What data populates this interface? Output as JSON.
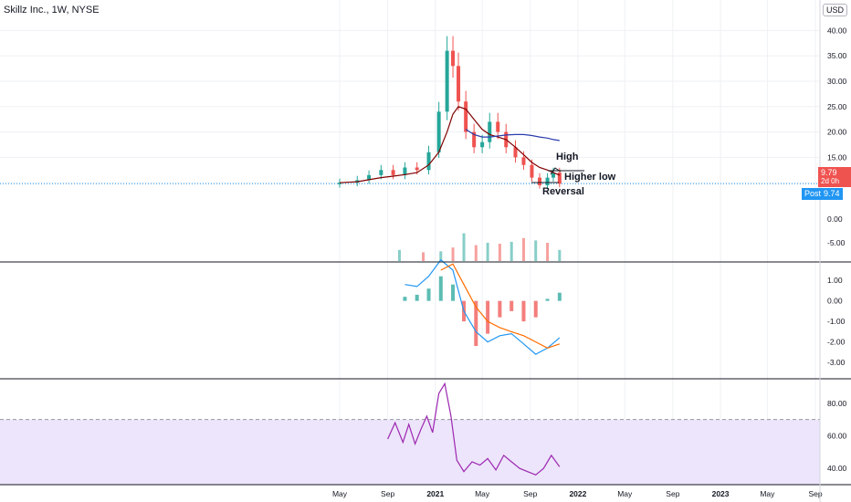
{
  "header": {
    "title": "Skillz Inc., 1W, NYSE",
    "currency": "USD"
  },
  "price_tags": {
    "last_price": "9.79",
    "countdown": "2d 0h",
    "post_label": "Post",
    "post_price": "9.74"
  },
  "annotations": [
    "High",
    "Higher low",
    "Reversal"
  ],
  "x_ticks": [
    "May",
    "Sep",
    "2021",
    "May",
    "Sep",
    "2022",
    "May",
    "Sep",
    "2023",
    "May",
    "Sep"
  ],
  "colors": {
    "up": "#26a69a",
    "down": "#ef5350",
    "ma_short": "#800000",
    "ma_long": "#2a3cad",
    "rsi": "#9c27b0",
    "macd": "#2196f3",
    "signal": "#ff6d00",
    "rsi_band": "#ede5fb"
  },
  "chart_data": [
    {
      "type": "candlestick",
      "panel": "price",
      "y_ticks": [
        10,
        15,
        20,
        25,
        30,
        35,
        40
      ],
      "y_tick_labels": [
        "10.00",
        "15.00",
        "20.00",
        "25.00",
        "30.00",
        "35.00",
        "40.00"
      ],
      "ylim": [
        5,
        46
      ],
      "x": [
        "2020-05-01",
        "2020-06-15",
        "2020-07-15",
        "2020-08-15",
        "2020-09-15",
        "2020-10-15",
        "2020-11-15",
        "2020-12-15",
        "2021-01-10",
        "2021-01-31",
        "2021-02-15",
        "2021-03-01",
        "2021-03-20",
        "2021-04-10",
        "2021-05-01",
        "2021-05-20",
        "2021-06-10",
        "2021-07-01",
        "2021-07-25",
        "2021-08-15",
        "2021-09-05",
        "2021-09-25",
        "2021-10-15",
        "2021-10-30",
        "2021-11-15"
      ],
      "close": [
        10,
        10.5,
        11.5,
        12.5,
        11.5,
        13,
        12.5,
        16,
        24,
        36,
        33,
        26,
        20,
        17,
        18,
        22,
        20,
        17,
        15,
        13.5,
        11,
        9.5,
        11,
        12,
        9.8
      ],
      "ma_short": [
        10,
        10.2,
        10.6,
        11,
        11.3,
        11.6,
        12,
        13.5,
        16,
        20,
        23.5,
        25,
        24.5,
        22.5,
        20.5,
        19.5,
        19,
        18.5,
        17,
        15.5,
        14,
        13,
        12.5,
        12,
        11.5
      ],
      "ma_long": [
        null,
        null,
        null,
        null,
        null,
        null,
        null,
        null,
        null,
        null,
        null,
        null,
        20.5,
        19.5,
        19,
        19,
        19.2,
        19.4,
        19.5,
        19.5,
        19.3,
        19,
        18.8,
        18.5,
        18.3
      ],
      "labels": {
        "high": "High",
        "higher_low": "Higher low",
        "reversal": "Reversal"
      }
    },
    {
      "type": "bar",
      "panel": "volume_histogram",
      "y_tick_labels": [
        "0.00",
        "-5.00"
      ],
      "x": [
        "2020-10-01",
        "2020-12-01",
        "2021-01-15",
        "2021-02-15",
        "2021-03-15",
        "2021-04-15",
        "2021-05-15",
        "2021-06-15",
        "2021-07-15",
        "2021-08-15",
        "2021-09-15",
        "2021-10-15",
        "2021-11-15"
      ],
      "values": [
        -6.5,
        -7,
        -6.8,
        -6,
        -3,
        -5.5,
        -5,
        -5.2,
        -4.8,
        -4,
        -4.5,
        -5,
        -6.5
      ]
    },
    {
      "type": "line",
      "panel": "macd",
      "y_ticks": [
        1,
        0,
        -1,
        -2,
        -3
      ],
      "y_tick_labels": [
        "1.00",
        "0.00",
        "-1.00",
        "-2.00",
        "-3.00"
      ],
      "ylim": [
        -3.8,
        1.9
      ],
      "x": [
        "2020-10-15",
        "2020-11-15",
        "2020-12-15",
        "2021-01-15",
        "2021-02-15",
        "2021-03-15",
        "2021-04-15",
        "2021-05-15",
        "2021-06-15",
        "2021-07-15",
        "2021-08-15",
        "2021-09-15",
        "2021-10-15",
        "2021-11-15"
      ],
      "series": [
        {
          "values": [
            0.8,
            0.7,
            1.2,
            2.0,
            1.5,
            -0.5,
            -1.5,
            -2.0,
            -1.7,
            -1.6,
            -2.1,
            -2.6,
            -2.3,
            -1.8
          ]
        },
        {
          "values": [
            null,
            null,
            null,
            1.5,
            1.8,
            0.8,
            -0.3,
            -1.0,
            -1.3,
            -1.5,
            -1.7,
            -2.0,
            -2.3,
            -2.1
          ]
        }
      ],
      "histogram": [
        0.2,
        0.3,
        0.6,
        1.2,
        0.8,
        -1.0,
        -2.2,
        -1.6,
        -0.8,
        -0.5,
        -1.0,
        -0.8,
        0.1,
        0.4
      ]
    },
    {
      "type": "line",
      "panel": "rsi",
      "y_ticks": [
        80,
        60,
        40
      ],
      "y_tick_labels": [
        "80.00",
        "60.00",
        "40.00"
      ],
      "ylim": [
        30,
        95
      ],
      "band": [
        30,
        70
      ],
      "x": [
        "2020-09-01",
        "2020-09-20",
        "2020-10-10",
        "2020-10-25",
        "2020-11-10",
        "2020-11-25",
        "2020-12-10",
        "2020-12-25",
        "2021-01-10",
        "2021-01-25",
        "2021-02-10",
        "2021-02-25",
        "2021-03-15",
        "2021-04-05",
        "2021-04-25",
        "2021-05-15",
        "2021-06-05",
        "2021-06-25",
        "2021-07-15",
        "2021-08-05",
        "2021-08-25",
        "2021-09-15",
        "2021-10-05",
        "2021-10-25",
        "2021-11-15"
      ],
      "values": [
        58,
        68,
        56,
        67,
        55,
        64,
        72,
        62,
        86,
        92,
        72,
        45,
        38,
        44,
        42,
        46,
        39,
        48,
        44,
        40,
        38,
        36,
        40,
        48,
        41
      ]
    }
  ]
}
